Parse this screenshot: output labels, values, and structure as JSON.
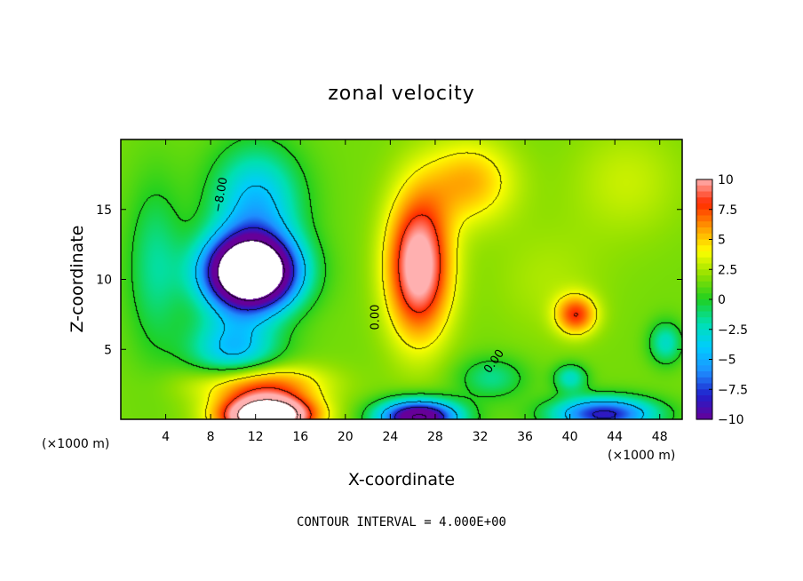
{
  "chart_data": {
    "type": "heatmap",
    "title": "zonal velocity",
    "xlabel": "X-coordinate",
    "ylabel": "Z-coordinate",
    "x_units": "(×1000 m)",
    "x_units_right": "(×1000 m)",
    "xlim": [
      0,
      50
    ],
    "ylim": [
      0,
      20
    ],
    "x_ticks": [
      "4",
      "8",
      "12",
      "16",
      "20",
      "24",
      "28",
      "32",
      "36",
      "40",
      "44",
      "48"
    ],
    "y_ticks": [
      "5",
      "10",
      "15"
    ],
    "colorbar": {
      "range": [
        -10,
        10
      ],
      "ticks": [
        "10",
        "7.5",
        "5",
        "2.5",
        "0",
        "−2.5",
        "−5",
        "−7.5",
        "−10"
      ],
      "colors": [
        "#660099",
        "#2020cc",
        "#1e90ff",
        "#00ccff",
        "#00e0b0",
        "#20d020",
        "#90e000",
        "#ffff00",
        "#ff9900",
        "#ff2a00",
        "#ffb0b0"
      ]
    },
    "contour_labels": [
      "−8.00",
      "0.00",
      "0.00"
    ],
    "footer": "CONTOUR INTERVAL = 4.000E+00",
    "blobs": [
      {
        "x": 11.5,
        "z": 10.5,
        "sx": 4.0,
        "sz": 2.6,
        "value": -22
      },
      {
        "x": 12.0,
        "z": 15.5,
        "sx": 4.0,
        "sz": 4.0,
        "value": -6
      },
      {
        "x": 10.0,
        "z": 5.0,
        "sx": 4.0,
        "sz": 2.5,
        "value": -6
      },
      {
        "x": 3.0,
        "z": 11.0,
        "sx": 2.5,
        "sz": 6.0,
        "value": -3
      },
      {
        "x": 13.0,
        "z": 0.3,
        "sx": 4.0,
        "sz": 1.4,
        "value": 16
      },
      {
        "x": 12.0,
        "z": 2.6,
        "sx": 5.5,
        "sz": 1.4,
        "value": 6
      },
      {
        "x": 26.5,
        "z": 11.0,
        "sx": 2.8,
        "sz": 5.0,
        "value": 10
      },
      {
        "x": 26.5,
        "z": 0.2,
        "sx": 3.5,
        "sz": 1.2,
        "value": -14
      },
      {
        "x": 33.0,
        "z": 3.0,
        "sx": 3.0,
        "sz": 1.5,
        "value": -3
      },
      {
        "x": 40.5,
        "z": 7.5,
        "sx": 1.8,
        "sz": 1.4,
        "value": 6
      },
      {
        "x": 43.0,
        "z": 0.4,
        "sx": 4.5,
        "sz": 1.2,
        "value": -10
      },
      {
        "x": 40.0,
        "z": 3.0,
        "sx": 1.5,
        "sz": 1.0,
        "value": -4
      },
      {
        "x": 48.5,
        "z": 5.5,
        "sx": 1.5,
        "sz": 1.5,
        "value": -4
      },
      {
        "x": 31.0,
        "z": 17.0,
        "sx": 4.0,
        "sz": 3.0,
        "value": 4
      },
      {
        "x": 45.0,
        "z": 17.0,
        "sx": 5.0,
        "sz": 4.0,
        "value": 1.5
      },
      {
        "x": 38.0,
        "z": 10.0,
        "sx": 5.0,
        "sz": 4.0,
        "value": 1
      }
    ]
  }
}
